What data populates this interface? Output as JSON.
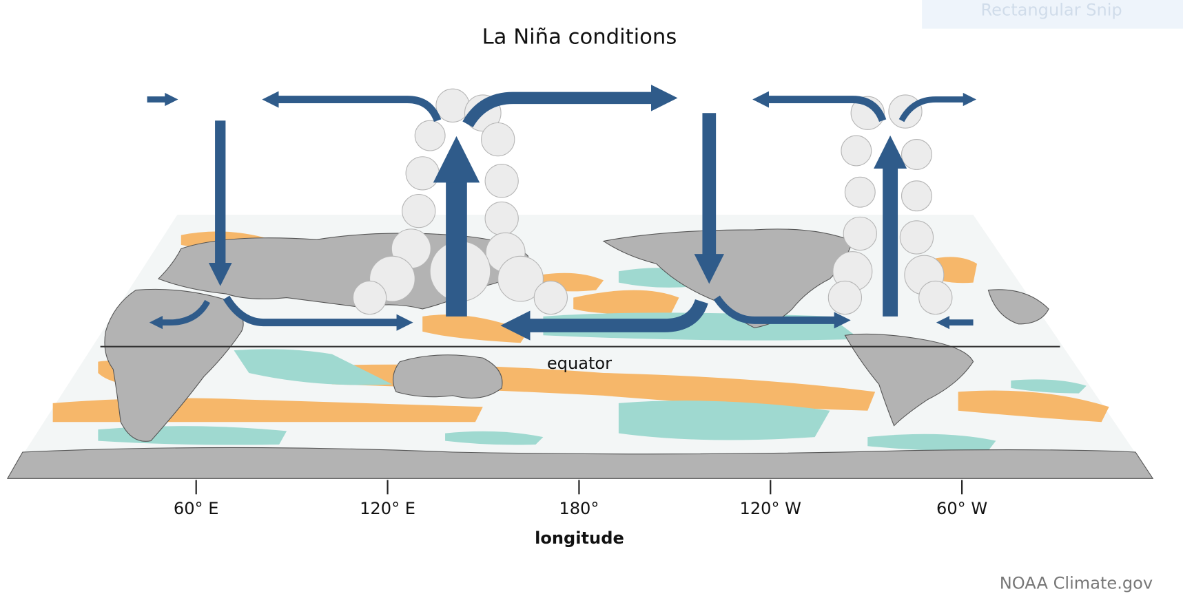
{
  "title": "La Niña conditions",
  "equator_label": "equator",
  "axis": {
    "ticks": [
      "60° E",
      "120° E",
      "180°",
      "120° W",
      "60° W"
    ],
    "label": "longitude"
  },
  "credit": "NOAA Climate.gov",
  "snip_label": "Rectangular Snip"
}
